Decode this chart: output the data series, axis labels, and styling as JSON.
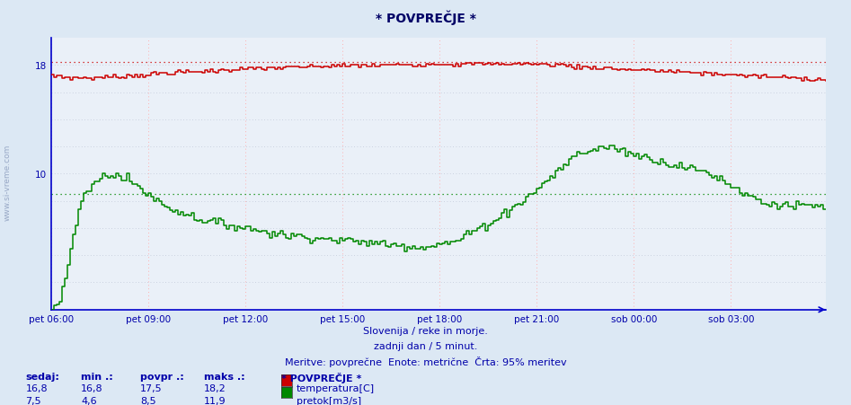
{
  "title": "* POVPREČJE *",
  "bg_color": "#dce8f4",
  "plot_bg_color": "#eaf0f8",
  "text_color": "#0000aa",
  "temp_color": "#cc0000",
  "flow_color": "#008800",
  "temp_max_line": 18.2,
  "flow_avg_line": 8.5,
  "subtitle1": "Slovenija / reke in morje.",
  "subtitle2": "zadnji dan / 5 minut.",
  "subtitle3": "Meritve: povprečne  Enote: metrične  Črta: 95% meritev",
  "legend_title": "* POVPREČJE *",
  "legend_items": [
    {
      "label": "temperatura[C]",
      "color": "#cc0000"
    },
    {
      "label": "pretok[m3/s]",
      "color": "#008800"
    }
  ],
  "stats": {
    "headers": [
      "sedaj:",
      "min .:",
      "povpr .:",
      "maks .:"
    ],
    "temp": [
      "16,8",
      "16,8",
      "17,5",
      "18,2"
    ],
    "flow": [
      "7,5",
      "4,6",
      "8,5",
      "11,9"
    ]
  },
  "xticklabels": [
    "pet 06:00",
    "pet 09:00",
    "pet 12:00",
    "pet 15:00",
    "pet 18:00",
    "pet 21:00",
    "sob 00:00",
    "sob 03:00"
  ],
  "ylim": [
    0,
    20
  ],
  "n_points": 288
}
